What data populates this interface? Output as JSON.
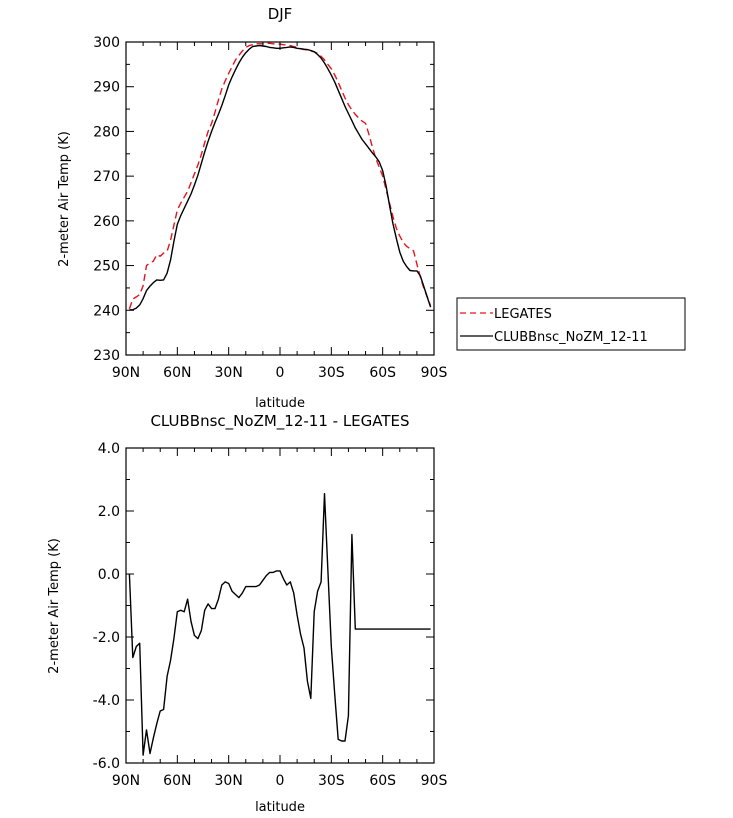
{
  "chart_data": [
    {
      "type": "line",
      "title": "DJF",
      "xlabel": "latitude",
      "ylabel": "2-meter Air Temp (K)",
      "xlim": [
        90,
        -90
      ],
      "ylim": [
        230,
        300
      ],
      "xticks": [
        90,
        60,
        30,
        0,
        -30,
        -60,
        -90
      ],
      "xtick_labels": [
        "90N",
        "60N",
        "30N",
        "0",
        "30S",
        "60S",
        "90S"
      ],
      "yticks": [
        230,
        240,
        250,
        260,
        270,
        280,
        290,
        300
      ],
      "ytick_labels": [
        "230",
        "240",
        "250",
        "260",
        "270",
        "280",
        "290",
        "300"
      ],
      "legend_position": "right",
      "series": [
        {
          "name": "LEGATES",
          "color": "#e8141a",
          "dash": "dashed",
          "x": [
            88,
            86,
            84,
            82,
            80,
            78,
            76,
            74,
            72,
            70,
            68,
            66,
            64,
            62,
            60,
            58,
            56,
            54,
            52,
            50,
            48,
            46,
            44,
            42,
            40,
            38,
            36,
            34,
            32,
            30,
            28,
            26,
            24,
            22,
            20,
            18,
            16,
            14,
            12,
            10,
            8,
            6,
            4,
            2,
            0,
            -2,
            -4,
            -6,
            -8,
            -10,
            -12,
            -14,
            -16,
            -18,
            -20,
            -22,
            -24,
            -26,
            -28,
            -30,
            -32,
            -34,
            -36,
            -38,
            -40,
            -42,
            -44,
            -46,
            -48,
            -50,
            -52,
            -54,
            -56,
            -58,
            -60,
            -62,
            -64,
            -66,
            -68,
            -70,
            -72,
            -74,
            -76,
            -78,
            -80,
            -82,
            -84,
            -86,
            -88
          ],
          "values": [
            240.3,
            242.5,
            243.0,
            243.5,
            245.5,
            250.0,
            250.6,
            251.0,
            252.4,
            252.1,
            252.8,
            253.2,
            255.6,
            259.0,
            262.4,
            264.0,
            265.3,
            266.6,
            268.5,
            270.5,
            272.5,
            274.8,
            277.5,
            280.0,
            281.8,
            284.3,
            287.0,
            289.5,
            291.3,
            293.0,
            294.5,
            296.0,
            297.0,
            298.0,
            298.8,
            299.2,
            299.4,
            299.6,
            299.6,
            299.6,
            299.7,
            299.7,
            299.6,
            299.6,
            299.5,
            299.4,
            299.3,
            299.2,
            299.0,
            298.8,
            298.5,
            298.3,
            298.2,
            298.0,
            297.8,
            297.5,
            296.8,
            296.0,
            295.0,
            294.0,
            292.6,
            291.0,
            289.2,
            287.5,
            286.0,
            284.8,
            283.8,
            283.0,
            282.3,
            281.8,
            279.3,
            276.5,
            274.0,
            272.0,
            270.0,
            267.0,
            264.0,
            261.0,
            258.3,
            256.6,
            255.2,
            254.3,
            253.8,
            253.3,
            250.3,
            247.5,
            245.0,
            243.0,
            241.0
          ]
        },
        {
          "name": "CLUBBnsc_NoZM_12-11",
          "color": "#000000",
          "dash": "solid",
          "x": [
            88,
            86,
            84,
            82,
            80,
            78,
            76,
            74,
            72,
            70,
            68,
            66,
            64,
            62,
            60,
            58,
            56,
            54,
            52,
            50,
            48,
            46,
            44,
            42,
            40,
            38,
            36,
            34,
            32,
            30,
            28,
            26,
            24,
            22,
            20,
            18,
            16,
            14,
            12,
            10,
            8,
            6,
            4,
            2,
            0,
            -2,
            -4,
            -6,
            -8,
            -10,
            -12,
            -14,
            -16,
            -18,
            -20,
            -22,
            -24,
            -26,
            -28,
            -30,
            -32,
            -34,
            -36,
            -38,
            -40,
            -42,
            -44,
            -46,
            -48,
            -50,
            -52,
            -54,
            -56,
            -58,
            -60,
            -62,
            -64,
            -66,
            -68,
            -70,
            -72,
            -74,
            -76,
            -78,
            -80,
            -82,
            -84,
            -86,
            -88
          ],
          "values": [
            240.1,
            240.1,
            240.5,
            241.2,
            242.6,
            244.4,
            245.4,
            246.2,
            246.8,
            246.7,
            246.8,
            248.3,
            251.2,
            255.4,
            259.2,
            261.2,
            262.8,
            264.4,
            266.0,
            268.0,
            270.2,
            272.8,
            275.4,
            277.8,
            280.0,
            282.0,
            283.8,
            285.8,
            288.0,
            290.4,
            292.2,
            293.8,
            295.3,
            296.6,
            297.6,
            298.4,
            299.0,
            299.1,
            299.2,
            299.1,
            299.0,
            298.8,
            298.7,
            298.6,
            298.6,
            298.7,
            298.8,
            298.9,
            298.8,
            298.6,
            298.5,
            298.4,
            298.3,
            298.1,
            297.8,
            297.2,
            296.4,
            295.3,
            294.0,
            292.6,
            291.0,
            289.2,
            287.4,
            285.6,
            284.0,
            282.4,
            280.8,
            279.5,
            278.2,
            277.2,
            276.2,
            275.2,
            274.3,
            273.2,
            271.2,
            267.8,
            263.5,
            259.4,
            256.0,
            253.0,
            251.0,
            249.8,
            248.9,
            248.8,
            248.8,
            247.7,
            245.4,
            243.0,
            240.7
          ]
        }
      ]
    },
    {
      "type": "line",
      "title": "CLUBBnsc_NoZM_12-11 - LEGATES",
      "xlabel": "latitude",
      "ylabel": "2-meter Air Temp (K)",
      "xlim": [
        90,
        -90
      ],
      "ylim": [
        -6.0,
        4.0
      ],
      "xticks": [
        90,
        60,
        30,
        0,
        -30,
        -60,
        -90
      ],
      "xtick_labels": [
        "90N",
        "60N",
        "30N",
        "0",
        "30S",
        "60S",
        "90S"
      ],
      "yticks": [
        -6.0,
        -4.0,
        -2.0,
        0.0,
        2.0,
        4.0
      ],
      "ytick_labels": [
        "-6.0",
        "-4.0",
        "-2.0",
        "0.0",
        "2.0",
        "4.0"
      ],
      "series": [
        {
          "color": "#000000",
          "dash": "solid",
          "x": [
            88,
            86,
            84,
            82,
            80,
            78,
            76,
            74,
            72,
            70,
            68,
            66,
            64,
            62,
            60,
            58,
            56,
            54,
            52,
            50,
            48,
            46,
            44,
            42,
            40,
            38,
            36,
            34,
            32,
            30,
            28,
            26,
            24,
            22,
            20,
            18,
            16,
            14,
            12,
            10,
            8,
            6,
            4,
            2,
            0,
            -2,
            -4,
            -6,
            -8,
            -10,
            -12,
            -14,
            -16,
            -18,
            -20,
            -22,
            -24,
            -26,
            -28,
            -30,
            -32,
            -34,
            -36,
            -38,
            -40,
            -42,
            -44,
            -46,
            -48,
            -50,
            -52,
            -54,
            -56,
            -58,
            -60,
            -62,
            -64,
            -66,
            -68,
            -70,
            -72,
            -74,
            -76,
            -78,
            -80,
            -82,
            -84,
            -86,
            -88
          ],
          "values": [
            0.0,
            -2.65,
            -2.3,
            -2.2,
            -5.75,
            -4.95,
            -5.7,
            -5.2,
            -4.75,
            -4.35,
            -4.3,
            -3.25,
            -2.75,
            -2.05,
            -1.2,
            -1.15,
            -1.2,
            -0.8,
            -1.5,
            -1.95,
            -2.05,
            -1.8,
            -1.15,
            -0.95,
            -1.1,
            -1.1,
            -0.8,
            -0.35,
            -0.25,
            -0.3,
            -0.55,
            -0.65,
            -0.75,
            -0.6,
            -0.4,
            -0.4,
            -0.4,
            -0.4,
            -0.35,
            -0.2,
            -0.05,
            0.05,
            0.05,
            0.1,
            0.1,
            -0.15,
            -0.35,
            -0.25,
            -0.6,
            -1.3,
            -1.9,
            -2.35,
            -3.4,
            -3.95,
            -1.2,
            -0.55,
            -0.25,
            2.55,
            0.1,
            -2.3,
            -3.85,
            -5.25,
            -5.3,
            -5.3,
            -4.5,
            1.25,
            -1.75,
            -1.75,
            -1.75,
            -1.75,
            -1.75,
            -1.75,
            -1.75,
            -1.75,
            -1.75,
            -1.75,
            -1.75,
            -1.75,
            -1.75,
            -1.75,
            -1.75,
            -1.75,
            -1.75,
            -1.75,
            -1.75,
            -1.75,
            -1.75,
            -1.75,
            -1.75
          ]
        }
      ]
    }
  ]
}
